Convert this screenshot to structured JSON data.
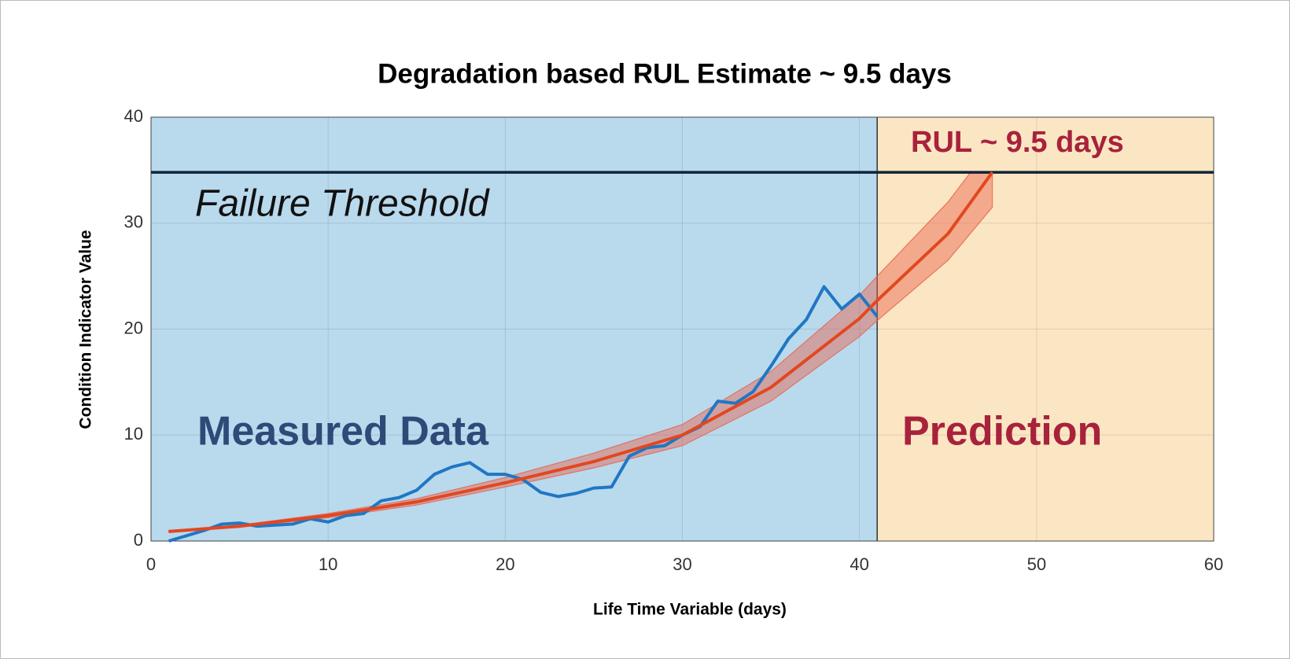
{
  "chart_data": {
    "type": "line",
    "title": "Degradation based RUL Estimate ~ 9.5 days",
    "xlabel": "Life Time Variable (days)",
    "ylabel": "Condition Indicator Value",
    "xlim": [
      0,
      60
    ],
    "ylim": [
      0,
      40
    ],
    "xticks": [
      0,
      10,
      20,
      30,
      40,
      50,
      60
    ],
    "yticks": [
      0,
      10,
      20,
      30,
      40
    ],
    "grid": true,
    "regions": [
      {
        "xlim": [
          0,
          41
        ],
        "color": "#b9d9ed",
        "label": "Measured Data",
        "label_color": "#2f4a78"
      },
      {
        "xlim": [
          41,
          60
        ],
        "color": "#fbe6c3",
        "label": "Prediction",
        "label_color": "#a8223c"
      }
    ],
    "threshold": {
      "value": 34.8,
      "label": "Failure Threshold",
      "color": "#0f2436"
    },
    "annotation": {
      "text": "RUL ~ 9.5 days",
      "color": "#a8223c"
    },
    "band": {
      "color": "#e8604a",
      "x": [
        1,
        5,
        10,
        15,
        20,
        25,
        30,
        35,
        40,
        41,
        45,
        47.5
      ],
      "upper": [
        1.0,
        1.5,
        2.6,
        4.0,
        6.0,
        8.3,
        11,
        16,
        23.2,
        25,
        32,
        37.5
      ],
      "lower": [
        0.85,
        1.3,
        2.2,
        3.4,
        5.1,
        6.9,
        9.0,
        13.2,
        19.3,
        20.8,
        26.5,
        31.5
      ]
    },
    "series": [
      {
        "color": "#1f77c4",
        "x": [
          1,
          2,
          3,
          4,
          5,
          6,
          7,
          8,
          9,
          10,
          11,
          12,
          13,
          14,
          15,
          16,
          17,
          18,
          19,
          20,
          21,
          22,
          23,
          24,
          25,
          26,
          27,
          28,
          29,
          30,
          31,
          32,
          33,
          34,
          35,
          36,
          37,
          38,
          39,
          40,
          41
        ],
        "values": [
          0,
          0.5,
          1,
          1.6,
          1.7,
          1.4,
          1.5,
          1.6,
          2.1,
          1.8,
          2.4,
          2.6,
          3.8,
          4.1,
          4.8,
          6.3,
          7.0,
          7.4,
          6.3,
          6.3,
          5.8,
          4.6,
          4.2,
          4.5,
          5.0,
          5.1,
          8.0,
          8.8,
          9.0,
          10,
          10.8,
          13.2,
          13.0,
          14.1,
          16.5,
          19.1,
          20.9,
          24,
          21.9,
          23.3,
          21.2
        ]
      },
      {
        "color": "#e2471f",
        "x": [
          1,
          5,
          10,
          15,
          20,
          25,
          30,
          35,
          40,
          41,
          45,
          47.5
        ],
        "values": [
          0.9,
          1.4,
          2.4,
          3.7,
          5.5,
          7.5,
          10,
          14.5,
          21,
          22.7,
          29,
          34.8
        ]
      }
    ]
  }
}
